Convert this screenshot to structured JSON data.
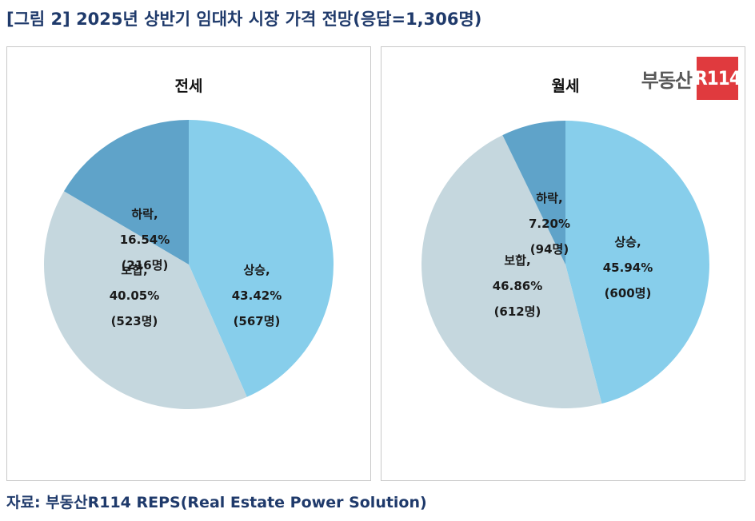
{
  "title": "[그림 2] 2025년 상반기 임대차 시장 가격 전망(응답=1,306명)",
  "source": "자료: 부동산R114 REPS(Real Estate Power Solution)",
  "logo": {
    "text": "부동산",
    "badge": "R114"
  },
  "colors": {
    "상승": "#87ceeb",
    "보합": "#c5d7de",
    "하락": "#5fa3c9",
    "title": "#1f3a6b"
  },
  "chart_data": [
    {
      "type": "pie",
      "title": "전세",
      "slices": [
        {
          "label": "상승",
          "percent": 43.42,
          "count_label": "(567명)",
          "percent_label": "43.42%",
          "name_label": "상승,"
        },
        {
          "label": "보합",
          "percent": 40.05,
          "count_label": "(523명)",
          "percent_label": "40.05%",
          "name_label": "보합,"
        },
        {
          "label": "하락",
          "percent": 16.54,
          "count_label": "(216명)",
          "percent_label": "16.54%",
          "name_label": "하락,"
        }
      ]
    },
    {
      "type": "pie",
      "title": "월세",
      "slices": [
        {
          "label": "상승",
          "percent": 45.94,
          "count_label": "(600명)",
          "percent_label": "45.94%",
          "name_label": "상승,"
        },
        {
          "label": "보합",
          "percent": 46.86,
          "count_label": "(612명)",
          "percent_label": "46.86%",
          "name_label": "보합,"
        },
        {
          "label": "하락",
          "percent": 7.2,
          "count_label": "(94명)",
          "percent_label": "7.20%",
          "name_label": "하락,"
        }
      ]
    }
  ]
}
